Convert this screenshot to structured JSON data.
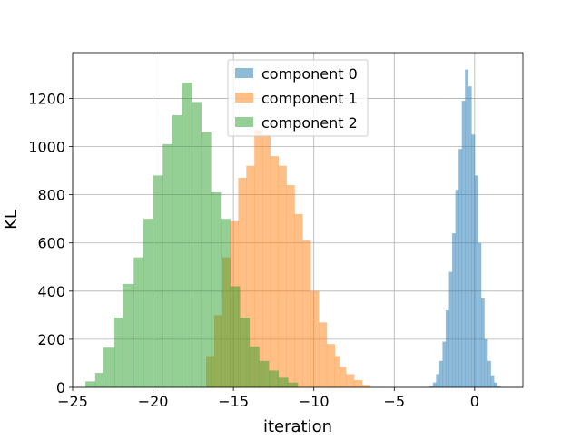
{
  "chart_data": {
    "type": "histogram",
    "title": "",
    "xlabel": "iteration",
    "ylabel": "KL",
    "xlim": [
      -25,
      3
    ],
    "ylim": [
      0,
      1390
    ],
    "grid": true,
    "legend_position": "top-center",
    "xticks": [
      -25,
      -20,
      -15,
      -10,
      -5,
      0
    ],
    "xtick_labels": [
      "−25",
      "−20",
      "−15",
      "−10",
      "−5",
      "0"
    ],
    "yticks": [
      0,
      200,
      400,
      600,
      800,
      1000,
      1200
    ],
    "ytick_labels": [
      "0",
      "200",
      "400",
      "600",
      "800",
      "1000",
      "1200"
    ],
    "series": [
      {
        "name": "component 0",
        "color": "#1f77b4",
        "opacity": 0.5,
        "bin_edges": [
          -2.8,
          -2.6,
          -2.4,
          -2.2,
          -2.0,
          -1.8,
          -1.6,
          -1.4,
          -1.2,
          -1.0,
          -0.8,
          -0.6,
          -0.4,
          -0.2,
          0.0,
          0.2,
          0.4,
          0.6,
          0.8,
          1.0,
          1.2,
          1.4,
          1.6
        ],
        "counts": [
          5,
          20,
          55,
          110,
          190,
          320,
          480,
          640,
          820,
          990,
          1190,
          1320,
          1250,
          1050,
          880,
          600,
          370,
          200,
          110,
          50,
          20,
          5
        ]
      },
      {
        "name": "component 1",
        "color": "#ff7f0e",
        "opacity": 0.5,
        "bin_edges": [
          -16.7,
          -16.2,
          -15.7,
          -15.2,
          -14.7,
          -14.2,
          -13.7,
          -13.2,
          -12.7,
          -12.2,
          -11.7,
          -11.2,
          -10.7,
          -10.2,
          -9.7,
          -9.2,
          -8.7,
          -8.4,
          -8.0,
          -7.5,
          -7.0,
          -6.5
        ],
        "counts": [
          130,
          300,
          540,
          690,
          870,
          920,
          1070,
          1050,
          960,
          920,
          840,
          720,
          610,
          400,
          270,
          180,
          130,
          85,
          55,
          30,
          10
        ]
      },
      {
        "name": "component 2",
        "color": "#2ca02c",
        "opacity": 0.5,
        "bin_edges": [
          -24.2,
          -23.6,
          -23.1,
          -22.4,
          -21.9,
          -21.2,
          -20.6,
          -20.0,
          -19.4,
          -18.8,
          -18.2,
          -17.6,
          -17.0,
          -16.4,
          -15.8,
          -15.2,
          -14.6,
          -14.0,
          -13.4,
          -12.8,
          -12.2,
          -11.6,
          -11.0
        ],
        "counts": [
          25,
          60,
          165,
          290,
          430,
          540,
          700,
          880,
          1010,
          1130,
          1265,
          1185,
          1060,
          810,
          700,
          420,
          290,
          170,
          110,
          70,
          40,
          20
        ]
      }
    ]
  }
}
